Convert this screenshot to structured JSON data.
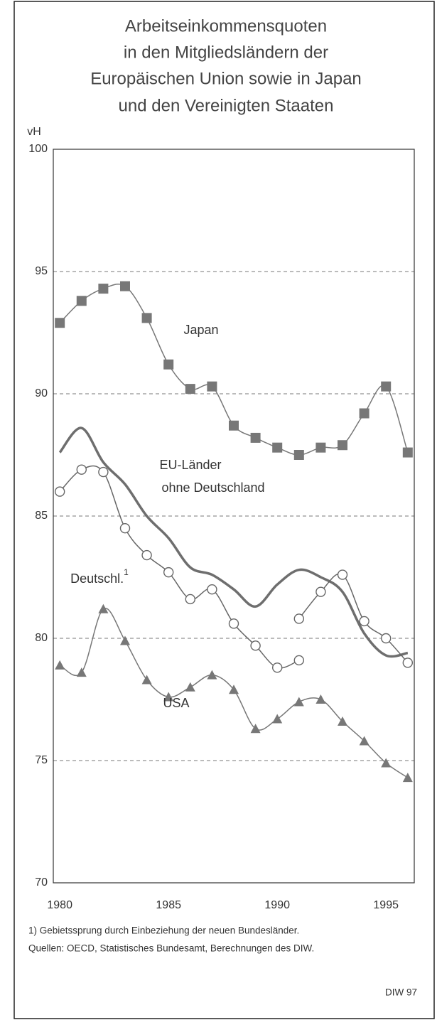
{
  "chart_data": {
    "type": "line",
    "title": [
      "Arbeitseinkommensquoten",
      "in den Mitgliedsländern der",
      "Europäischen Union sowie in Japan",
      "und den Vereinigten Staaten"
    ],
    "y_label": "vH",
    "xlim": [
      1979.7,
      1996.3
    ],
    "xticks": [
      1980,
      1985,
      1990,
      1995
    ],
    "ylim": [
      70,
      100
    ],
    "yticks": [
      70,
      75,
      80,
      85,
      90,
      95,
      100
    ],
    "grid": true,
    "series": [
      {
        "name": "Japan",
        "color": "#777777",
        "marker": "square",
        "line_width": 1.5,
        "x": [
          1980,
          1981,
          1982,
          1983,
          1984,
          1985,
          1986,
          1987,
          1988,
          1989,
          1990,
          1991,
          1992,
          1993,
          1994,
          1995,
          1996
        ],
        "values": [
          92.9,
          93.8,
          94.3,
          94.4,
          93.1,
          91.2,
          90.2,
          90.3,
          88.7,
          88.2,
          87.8,
          87.5,
          87.8,
          87.9,
          89.2,
          90.3,
          87.6
        ]
      },
      {
        "name": "EU-Länder ohne Deutschland",
        "color": "#6e6e6e",
        "marker": "none",
        "line_width": 3.5,
        "x": [
          1980,
          1981,
          1982,
          1983,
          1984,
          1985,
          1986,
          1987,
          1988,
          1989,
          1990,
          1991,
          1992,
          1993,
          1994,
          1995,
          1996
        ],
        "values": [
          87.6,
          88.6,
          87.2,
          86.3,
          85.0,
          84.1,
          82.9,
          82.6,
          82.0,
          81.3,
          82.2,
          82.8,
          82.5,
          81.9,
          80.2,
          79.3,
          79.4
        ]
      },
      {
        "name": "Deutschl.",
        "note": "1",
        "color": "#666666",
        "marker": "circle",
        "line_width": 1.5,
        "x": [
          1980,
          1981,
          1982,
          1983,
          1984,
          1985,
          1986,
          1987,
          1988,
          1989,
          1990,
          1991,
          1991,
          1991,
          1992,
          1993,
          1994,
          1995,
          1996
        ],
        "values": [
          86.0,
          86.9,
          86.8,
          84.5,
          83.4,
          82.7,
          81.6,
          82.0,
          80.6,
          79.7,
          78.8,
          79.1,
          null,
          80.8,
          81.9,
          82.6,
          80.7,
          80.0,
          79.0
        ]
      },
      {
        "name": "USA",
        "color": "#777777",
        "marker": "triangle",
        "line_width": 1.5,
        "x": [
          1980,
          1981,
          1982,
          1983,
          1984,
          1985,
          1986,
          1987,
          1988,
          1989,
          1990,
          1991,
          1992,
          1993,
          1994,
          1995,
          1996
        ],
        "values": [
          78.9,
          78.6,
          81.2,
          79.9,
          78.3,
          77.6,
          78.0,
          78.5,
          77.9,
          76.3,
          76.7,
          77.4,
          77.5,
          76.6,
          75.8,
          74.9,
          74.3
        ]
      }
    ],
    "footnotes": [
      "1) Gebietssprung durch Einbeziehung der neuen Bundesländer.",
      "Quellen: OECD, Statistisches Bundesamt, Berechnungen des DIW."
    ],
    "source": "DIW 97"
  }
}
